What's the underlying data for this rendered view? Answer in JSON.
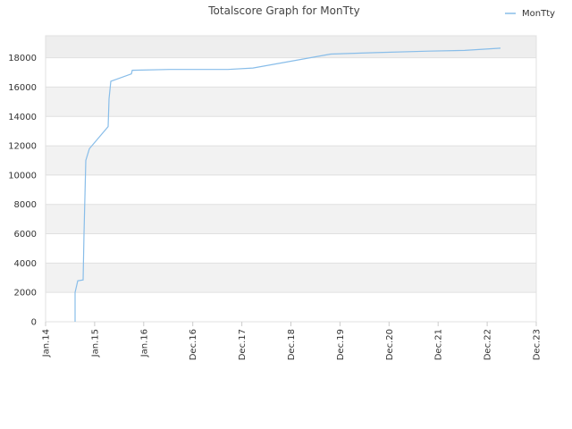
{
  "chart_data": {
    "type": "line",
    "title": "Totalscore Graph for MonTty",
    "x": [
      0.601,
      0.601,
      0.656,
      0.765,
      0.783,
      0.82,
      0.893,
      1.275,
      1.293,
      1.33,
      1.749,
      1.767,
      2.532,
      3.716,
      4.226,
      5.811,
      6.721,
      7.814,
      8.543,
      9.271
    ],
    "series": [
      {
        "name": "MonTty",
        "color": "#88bde9",
        "values": [
          0,
          2000,
          2800,
          2850,
          6000,
          11000,
          11800,
          13300,
          15200,
          16400,
          16900,
          17150,
          17200,
          17200,
          17300,
          18250,
          18350,
          18450,
          18500,
          18650
        ]
      }
    ],
    "xlim": [
      0,
      10
    ],
    "xticks": [
      {
        "value": 0,
        "label": "Jan.14"
      },
      {
        "value": 1,
        "label": "Jan.15"
      },
      {
        "value": 2,
        "label": "Jan.16"
      },
      {
        "value": 3,
        "label": "Dec.16"
      },
      {
        "value": 4,
        "label": "Dec.17"
      },
      {
        "value": 5,
        "label": "Dec.18"
      },
      {
        "value": 6,
        "label": "Dec.19"
      },
      {
        "value": 7,
        "label": "Dec.20"
      },
      {
        "value": 8,
        "label": "Dec.21"
      },
      {
        "value": 9,
        "label": "Dec.22"
      },
      {
        "value": 10,
        "label": "Dec.23"
      }
    ],
    "ylim": [
      0,
      19500
    ],
    "yticks": [
      0,
      2000,
      4000,
      6000,
      8000,
      10000,
      12000,
      14000,
      16000,
      18000
    ],
    "grid": true
  }
}
